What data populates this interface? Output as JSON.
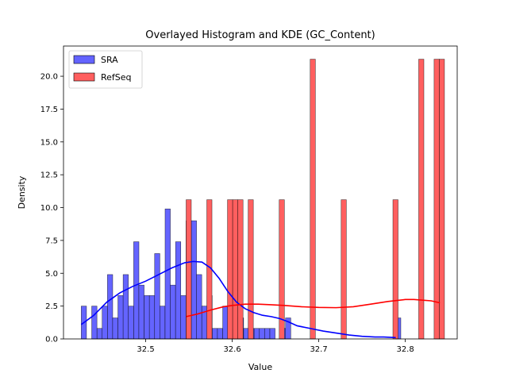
{
  "chart_data": {
    "type": "histogram",
    "title": "Overlayed Histogram and KDE (GC_Content)",
    "xlabel": "Value",
    "ylabel": "Density",
    "xlim": [
      32.405,
      32.86
    ],
    "ylim": [
      0,
      22.3
    ],
    "xticks": [
      32.5,
      32.6,
      32.7,
      32.8
    ],
    "xtick_labels": [
      "32.5",
      "32.6",
      "32.7",
      "32.8"
    ],
    "yticks": [
      0,
      2.5,
      5.0,
      7.5,
      10.0,
      12.5,
      15.0,
      17.5,
      20.0
    ],
    "ytick_labels": [
      "0.0",
      "2.5",
      "5.0",
      "7.5",
      "10.0",
      "12.5",
      "15.0",
      "17.5",
      "20.0"
    ],
    "legend": {
      "position": "top-left"
    },
    "series": [
      {
        "name": "SRA",
        "color": "#0000ff",
        "fill": "#6464ff",
        "bin_width": 0.00605,
        "bins": [
          [
            32.4255,
            2.5
          ],
          [
            32.4316,
            0
          ],
          [
            32.4376,
            2.5
          ],
          [
            32.4437,
            0.8
          ],
          [
            32.4497,
            2.5
          ],
          [
            32.4558,
            4.9
          ],
          [
            32.4618,
            1.6
          ],
          [
            32.4679,
            3.3
          ],
          [
            32.4739,
            4.9
          ],
          [
            32.48,
            2.5
          ],
          [
            32.4861,
            7.4
          ],
          [
            32.4921,
            4.1
          ],
          [
            32.4982,
            3.3
          ],
          [
            32.5042,
            3.3
          ],
          [
            32.5103,
            6.5
          ],
          [
            32.5163,
            2.5
          ],
          [
            32.5224,
            9.9
          ],
          [
            32.5284,
            4.1
          ],
          [
            32.5345,
            7.4
          ],
          [
            32.5405,
            3.3
          ],
          [
            32.5466,
            9.0
          ],
          [
            32.5527,
            9.0
          ],
          [
            32.5587,
            4.9
          ],
          [
            32.5648,
            2.5
          ],
          [
            32.5708,
            3.3
          ],
          [
            32.5769,
            0.8
          ],
          [
            32.5829,
            0.8
          ],
          [
            32.589,
            2.5
          ],
          [
            32.595,
            0.8
          ],
          [
            32.6011,
            1.6
          ],
          [
            32.6071,
            1.6
          ],
          [
            32.6132,
            0.8
          ],
          [
            32.6192,
            0.8
          ],
          [
            32.6253,
            0.8
          ],
          [
            32.6314,
            0.8
          ],
          [
            32.6374,
            0.8
          ],
          [
            32.6435,
            0.8
          ],
          [
            32.6495,
            0
          ],
          [
            32.6556,
            0.8
          ],
          [
            32.6616,
            1.6
          ],
          [
            32.6677,
            0
          ],
          [
            32.6737,
            0
          ],
          [
            32.6798,
            0
          ],
          [
            32.6858,
            0
          ],
          [
            32.6919,
            0
          ],
          [
            32.698,
            0
          ],
          [
            32.704,
            0
          ],
          [
            32.7101,
            0
          ],
          [
            32.7161,
            0
          ],
          [
            32.7222,
            0
          ],
          [
            32.7282,
            0
          ],
          [
            32.7343,
            0
          ],
          [
            32.7403,
            0
          ],
          [
            32.7464,
            0
          ],
          [
            32.7524,
            0
          ],
          [
            32.7585,
            0
          ],
          [
            32.7645,
            0
          ],
          [
            32.7706,
            0
          ],
          [
            32.7767,
            0
          ],
          [
            32.7827,
            0
          ],
          [
            32.7888,
            1.6
          ]
        ],
        "kde": [
          [
            32.4255,
            1.1
          ],
          [
            32.44,
            1.8
          ],
          [
            32.455,
            2.8
          ],
          [
            32.47,
            3.5
          ],
          [
            32.485,
            4.0
          ],
          [
            32.5,
            4.4
          ],
          [
            32.515,
            4.9
          ],
          [
            32.53,
            5.4
          ],
          [
            32.545,
            5.8
          ],
          [
            32.555,
            5.9
          ],
          [
            32.565,
            5.85
          ],
          [
            32.575,
            5.4
          ],
          [
            32.585,
            4.6
          ],
          [
            32.595,
            3.6
          ],
          [
            32.605,
            2.8
          ],
          [
            32.615,
            2.3
          ],
          [
            32.625,
            2.0
          ],
          [
            32.635,
            1.8
          ],
          [
            32.645,
            1.7
          ],
          [
            32.655,
            1.55
          ],
          [
            32.665,
            1.3
          ],
          [
            32.675,
            1.0
          ],
          [
            32.69,
            0.8
          ],
          [
            32.705,
            0.6
          ],
          [
            32.72,
            0.45
          ],
          [
            32.735,
            0.3
          ],
          [
            32.75,
            0.2
          ],
          [
            32.765,
            0.15
          ],
          [
            32.775,
            0.15
          ],
          [
            32.789,
            0.1
          ]
        ]
      },
      {
        "name": "RefSeq",
        "color": "#ff0000",
        "fill": "#ff5f5f",
        "bin_width": 0.00598,
        "bins": [
          [
            32.5467,
            10.6
          ],
          [
            32.5706,
            10.6
          ],
          [
            32.5945,
            10.6
          ],
          [
            32.6005,
            10.6
          ],
          [
            32.6065,
            10.6
          ],
          [
            32.6184,
            10.6
          ],
          [
            32.6543,
            10.6
          ],
          [
            32.6901,
            21.3
          ],
          [
            32.7259,
            10.6
          ],
          [
            32.7857,
            10.6
          ],
          [
            32.8155,
            21.3
          ],
          [
            32.8333,
            21.3
          ],
          [
            32.8393,
            21.3
          ]
        ],
        "kde": [
          [
            32.5467,
            1.7
          ],
          [
            32.56,
            1.9
          ],
          [
            32.575,
            2.2
          ],
          [
            32.59,
            2.45
          ],
          [
            32.6,
            2.55
          ],
          [
            32.615,
            2.65
          ],
          [
            32.63,
            2.65
          ],
          [
            32.645,
            2.6
          ],
          [
            32.66,
            2.55
          ],
          [
            32.68,
            2.45
          ],
          [
            32.7,
            2.4
          ],
          [
            32.72,
            2.38
          ],
          [
            32.74,
            2.45
          ],
          [
            32.76,
            2.65
          ],
          [
            32.78,
            2.85
          ],
          [
            32.8,
            3.0
          ],
          [
            32.81,
            3.0
          ],
          [
            32.82,
            2.95
          ],
          [
            32.83,
            2.9
          ],
          [
            32.84,
            2.75
          ]
        ]
      }
    ]
  }
}
